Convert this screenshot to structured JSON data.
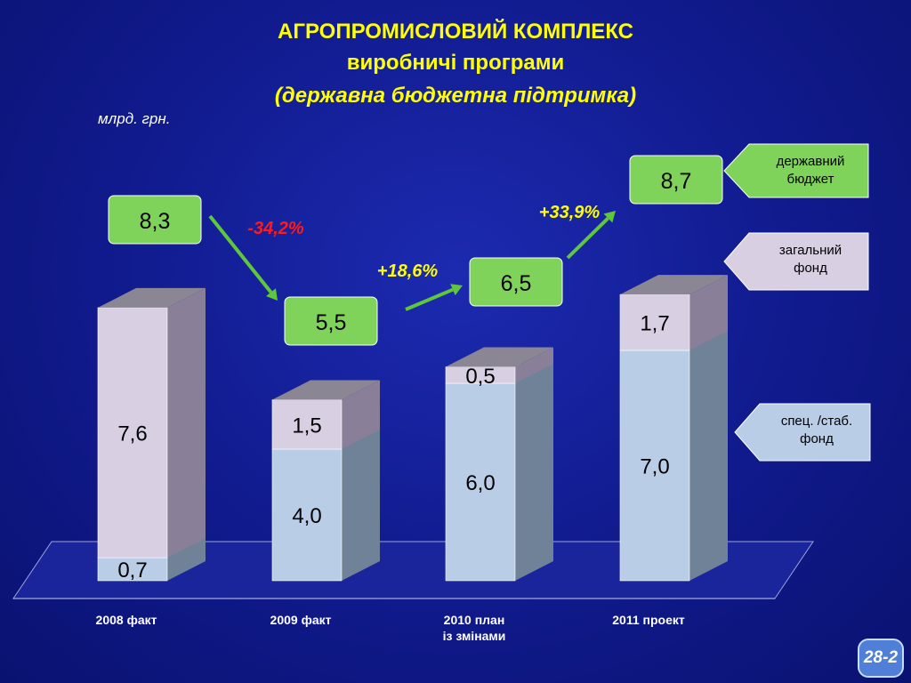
{
  "header": {
    "title": "АГРОПРОМИСЛОВИЙ КОМПЛЕКС",
    "subtitle": "виробничі програми",
    "subtitle2": "(державна бюджетна підтримка)",
    "unit": "млрд. грн."
  },
  "slide_number": "28-2",
  "colors": {
    "spec_fund": "#b9cde6",
    "general_fund": "#d8cfe3",
    "total_box": "#7fd35a",
    "change_positive": "#ffff00",
    "change_negative": "#ff1a1a",
    "arrow": "#5fc73c"
  },
  "chart_data": {
    "type": "bar",
    "stacked": true,
    "categories": [
      "2008 факт",
      "2009 факт",
      "2010 план\nіз змінами",
      "2011 проект"
    ],
    "series": [
      {
        "name": "спец. /стаб. фонд",
        "values": [
          0.7,
          4.0,
          6.0,
          7.0
        ],
        "labels": [
          "0,7",
          "4,0",
          "6,0",
          "7,0"
        ]
      },
      {
        "name": "загальний фонд",
        "values": [
          7.6,
          1.5,
          0.5,
          1.7
        ],
        "labels": [
          "7,6",
          "1,5",
          "0,5",
          "1,7"
        ]
      }
    ],
    "totals": [
      8.3,
      5.5,
      6.5,
      8.7
    ],
    "total_labels": [
      "8,3",
      "5,5",
      "6,5",
      "8,7"
    ],
    "changes": [
      {
        "from": 0,
        "to": 1,
        "label": "-34,2%",
        "sign": "negative"
      },
      {
        "from": 1,
        "to": 2,
        "label": "+18,6%",
        "sign": "positive"
      },
      {
        "from": 2,
        "to": 3,
        "label": "+33,9%",
        "sign": "positive"
      }
    ],
    "legend": [
      {
        "label": "державний\nбюджет",
        "color": "#7fd35a"
      },
      {
        "label": "загальний\nфонд",
        "color": "#d8cfe3"
      },
      {
        "label": "спец. /стаб.\nфонд",
        "color": "#b9cde6"
      }
    ],
    "legend_position": "right",
    "ylim": [
      0,
      10
    ],
    "grid": false
  }
}
